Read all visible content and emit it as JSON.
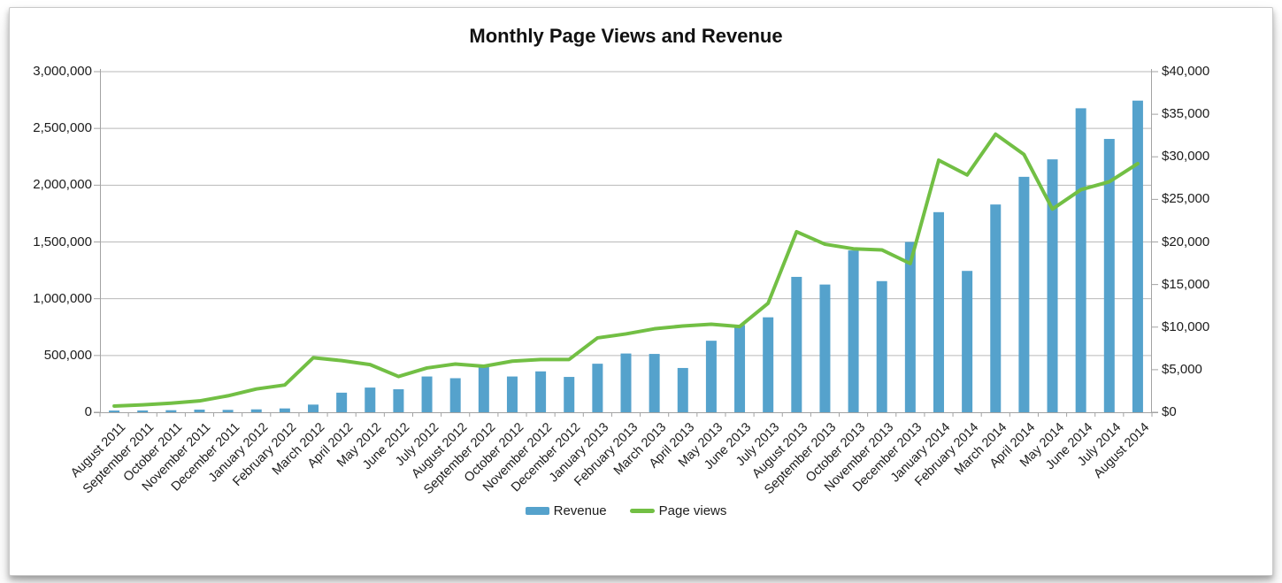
{
  "title": "Monthly Page Views and Revenue",
  "legend": {
    "items": [
      {
        "label": "Revenue",
        "marker": "bar-swatch"
      },
      {
        "label": "Page views",
        "marker": "line-swatch"
      }
    ],
    "position": "bottom-center"
  },
  "colors": {
    "bar_blue": "#55a2cc",
    "line_green": "#72bf44",
    "gridline_gray": "#b9b9b9",
    "axis_gray": "#a3a3a3",
    "text": "#1c1c1c"
  },
  "chart_data": {
    "type": "bar",
    "subtype": "bar+line dual axis",
    "title": "Monthly Page Views and Revenue",
    "categories": [
      "August 2011",
      "September 2011",
      "October 2011",
      "November 2011",
      "December 2011",
      "January 2012",
      "February 2012",
      "March 2012",
      "April 2012",
      "May 2012",
      "June 2012",
      "July 2012",
      "August 2012",
      "September 2012",
      "October 2012",
      "November 2012",
      "December 2012",
      "January 2013",
      "February 2013",
      "March 2013",
      "April 2013",
      "May 2013",
      "June 2013",
      "July 2013",
      "August 2013",
      "September 2013",
      "October 2013",
      "November 2013",
      "December 2013",
      "January 2014",
      "February 2014",
      "March 2014",
      "April 2014",
      "May 2014",
      "June 2014",
      "July 2014",
      "August 2014"
    ],
    "series": [
      {
        "name": "Revenue",
        "type": "bar",
        "axis": "right",
        "color": "#55a2cc",
        "values": [
          200,
          210,
          240,
          310,
          280,
          340,
          450,
          900,
          2300,
          2900,
          2700,
          4200,
          4000,
          5300,
          4200,
          4800,
          4150,
          5700,
          6900,
          6850,
          5200,
          8400,
          10250,
          11150,
          15900,
          15000,
          19000,
          15400,
          20000,
          23500,
          16600,
          24400,
          27650,
          29700,
          35700,
          32100,
          36600
        ]
      },
      {
        "name": "Page views",
        "type": "line",
        "axis": "left",
        "color": "#72bf44",
        "values": [
          55000,
          65000,
          80000,
          100000,
          145000,
          205000,
          240000,
          480000,
          455000,
          420000,
          315000,
          390000,
          425000,
          405000,
          450000,
          465000,
          465000,
          655000,
          690000,
          735000,
          760000,
          775000,
          755000,
          960000,
          1590000,
          1480000,
          1440000,
          1430000,
          1310000,
          2220000,
          2090000,
          2450000,
          2270000,
          1790000,
          1960000,
          2030000,
          2190000
        ]
      }
    ],
    "left_axis": {
      "min": 0,
      "max": 3000000,
      "tick_interval": 500000,
      "tick_labels": [
        "0",
        "500,000",
        "1,000,000",
        "1,500,000",
        "2,000,000",
        "2,500,000",
        "3,000,000"
      ]
    },
    "right_axis": {
      "min": 0,
      "max": 40000,
      "tick_interval": 5000,
      "tick_labels": [
        "$0",
        "$5,000",
        "$10,000",
        "$15,000",
        "$20,000",
        "$25,000",
        "$30,000",
        "$35,000",
        "$40,000"
      ]
    },
    "grid": "horizontal gridlines at every 500,000 of left axis",
    "legend_position": "bottom-center",
    "xlabel_rotation_deg": -45
  }
}
